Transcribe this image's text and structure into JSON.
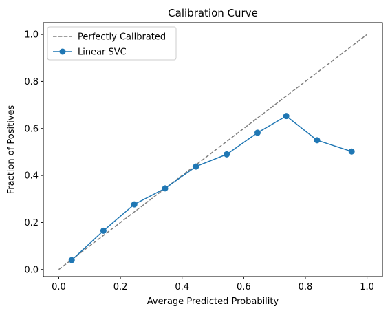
{
  "chart_data": {
    "type": "line",
    "title": "Calibration Curve",
    "xlabel": "Average Predicted Probability",
    "ylabel": "Fraction of Positives",
    "xlim": [
      -0.05,
      1.05
    ],
    "ylim": [
      -0.03,
      1.05
    ],
    "xticks": [
      0.0,
      0.2,
      0.4,
      0.6,
      0.8,
      1.0
    ],
    "yticks": [
      0.0,
      0.2,
      0.4,
      0.6,
      0.8,
      1.0
    ],
    "xtick_labels": [
      "0.0",
      "0.2",
      "0.4",
      "0.6",
      "0.8",
      "1.0"
    ],
    "ytick_labels": [
      "0.0",
      "0.2",
      "0.4",
      "0.6",
      "0.8",
      "1.0"
    ],
    "grid": false,
    "legend_placement": "upper-left",
    "series": [
      {
        "name": "Perfectly Calibrated",
        "style": "dashed",
        "color": "#7f7f7f",
        "x": [
          0.0,
          1.0
        ],
        "y": [
          0.0,
          1.0
        ]
      },
      {
        "name": "Linear SVC",
        "style": "solid-markers",
        "color": "#1f77b4",
        "x": [
          0.042,
          0.145,
          0.245,
          0.345,
          0.445,
          0.545,
          0.645,
          0.738,
          0.838,
          0.95
        ],
        "y": [
          0.04,
          0.165,
          0.277,
          0.345,
          0.438,
          0.49,
          0.582,
          0.653,
          0.55,
          0.502
        ]
      }
    ]
  }
}
